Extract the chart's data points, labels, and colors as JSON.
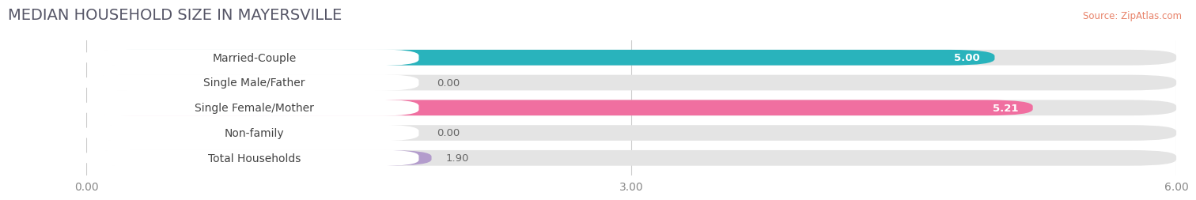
{
  "title": "MEDIAN HOUSEHOLD SIZE IN MAYERSVILLE",
  "source": "Source: ZipAtlas.com",
  "categories": [
    "Married-Couple",
    "Single Male/Father",
    "Single Female/Mother",
    "Non-family",
    "Total Households"
  ],
  "values": [
    5.0,
    0.0,
    5.21,
    0.0,
    1.9
  ],
  "bar_colors": [
    "#29b3bc",
    "#a8bde0",
    "#f06fa0",
    "#f5c98a",
    "#b39ccc"
  ],
  "xlim": [
    0,
    6.0
  ],
  "xticks": [
    0.0,
    3.0,
    6.0
  ],
  "xtick_labels": [
    "0.00",
    "3.00",
    "6.00"
  ],
  "background_color": "#f7f7f7",
  "bar_bg_color": "#e4e4e4",
  "title_fontsize": 14,
  "label_fontsize": 10,
  "value_fontsize": 9.5
}
